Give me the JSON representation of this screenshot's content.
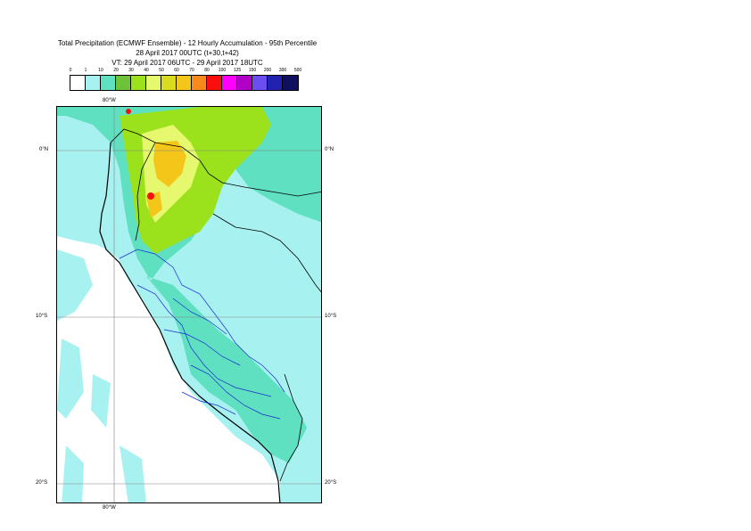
{
  "header": {
    "title": "Total Precipitation (ECMWF Ensemble) - 12 Hourly Accumulation - 95th Percentile",
    "base_time": "28 April 2017 00UTC (t+30,t+42)",
    "valid_time": "VT: 29 April 2017 06UTC - 29 April 2017 18UTC"
  },
  "legend": {
    "ticks": [
      "0",
      "1",
      "10",
      "20",
      "30",
      "40",
      "50",
      "60",
      "70",
      "80",
      "100",
      "125",
      "150",
      "200",
      "300",
      "500"
    ],
    "colors": [
      "#ffffff",
      "#a7f2f0",
      "#5fe0c0",
      "#6cc33a",
      "#9be21c",
      "#e6f86d",
      "#d9dc1e",
      "#f4c61a",
      "#f78a1a",
      "#fa0f0e",
      "#ff00ff",
      "#b000c8",
      "#6c4ef0",
      "#2222b0",
      "#101060"
    ]
  },
  "map": {
    "lon_labels": {
      "top": "80°W",
      "bottom": "80°W"
    },
    "lat_labels": [
      "0°N",
      "10°S",
      "20°S"
    ]
  }
}
